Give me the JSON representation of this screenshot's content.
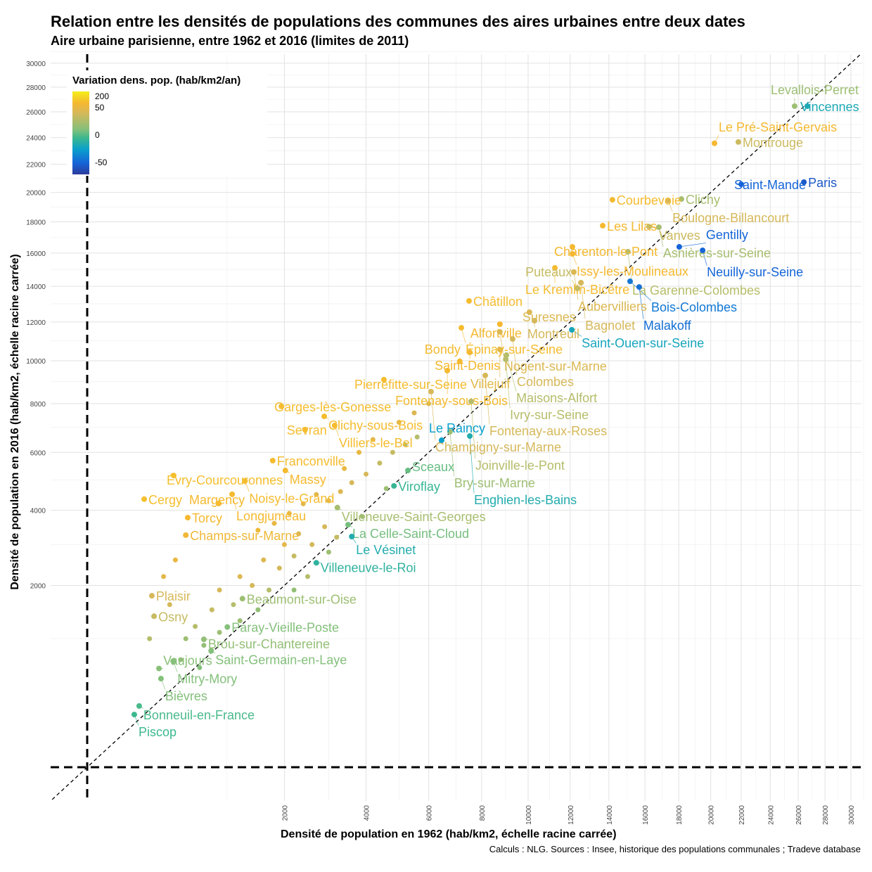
{
  "title": "Relation entre les densités de populations des communes des aires urbaines entre deux dates",
  "subtitle": "Aire urbaine parisienne, entre 1962 et 2016 (limites de 2011)",
  "caption": "Calculs : NLG. Sources : Insee, historique des populations communales ; Tradeve database",
  "chart_data": {
    "type": "scatter",
    "xlabel": "Densité de population en 1962 (hab/km2, échelle racine carrée)",
    "ylabel": "Densité de population en 2016 (hab/km2, échelle racine carrée)",
    "x_scale": "sqrt",
    "y_scale": "sqrt",
    "xlim": [
      0,
      31000
    ],
    "ylim": [
      0,
      31000
    ],
    "x_ticks": [
      2000,
      4000,
      6000,
      8000,
      10000,
      12000,
      14000,
      16000,
      18000,
      20000,
      22000,
      24000,
      26000,
      28000,
      30000
    ],
    "y_ticks": [
      2000,
      4000,
      6000,
      8000,
      10000,
      12000,
      14000,
      16000,
      18000,
      20000,
      22000,
      24000,
      26000,
      28000,
      30000
    ],
    "reference_lines": {
      "diagonal": "y = x",
      "vertical_x": 0,
      "horizontal_y": 0
    },
    "legend": {
      "title": "Variation dens. pop. (hab/km2/an)",
      "ticks": [
        {
          "label": "200",
          "value": 200
        },
        {
          "label": "50",
          "value": 50
        },
        {
          "label": "0",
          "value": 0
        },
        {
          "label": "-50",
          "value": -50
        }
      ],
      "color_scale": [
        [
          -80,
          "#2b3a9c"
        ],
        [
          -50,
          "#1565d8"
        ],
        [
          -20,
          "#0a9fcc"
        ],
        [
          0,
          "#3cb88f"
        ],
        [
          5,
          "#84c07b"
        ],
        [
          15,
          "#b6bd6a"
        ],
        [
          25,
          "#d6b85a"
        ],
        [
          50,
          "#f5b830"
        ],
        [
          200,
          "#f4ee1a"
        ]
      ]
    },
    "points": [
      {
        "name": "Vincennes",
        "x": 26670,
        "y": 26450,
        "var": -12
      },
      {
        "name": "Levallois-Perret",
        "x": 25740,
        "y": 26450,
        "var": 10
      },
      {
        "name": "Montrouge",
        "x": 21810,
        "y": 23660,
        "var": 22
      },
      {
        "name": "Le Pré-Saint-Gervais",
        "x": 20240,
        "y": 23560,
        "var": 50
      },
      {
        "name": "Paris",
        "x": 26420,
        "y": 20720,
        "var": -60
      },
      {
        "name": "Saint-Mandé",
        "x": 22000,
        "y": 20570,
        "var": -50
      },
      {
        "name": "Clichy",
        "x": 18160,
        "y": 19540,
        "var": 12
      },
      {
        "name": "Boulogne-Billancourt",
        "x": 17360,
        "y": 19440,
        "var": 25
      },
      {
        "name": "Courbevoie",
        "x": 14190,
        "y": 19490,
        "var": 55
      },
      {
        "name": "Les Lilas",
        "x": 13670,
        "y": 17750,
        "var": 50
      },
      {
        "name": "Vanves",
        "x": 16240,
        "y": 17690,
        "var": 22
      },
      {
        "name": "Asnières-sur-Seine",
        "x": 16810,
        "y": 17650,
        "var": 12
      },
      {
        "name": "Gentilly",
        "x": 18030,
        "y": 16390,
        "var": -50
      },
      {
        "name": "Neuilly-sur-Seine",
        "x": 19480,
        "y": 16170,
        "var": -50
      },
      {
        "name": "La Garenne-Colombes",
        "x": 15040,
        "y": 16080,
        "var": 15
      },
      {
        "name": "Charenton-le-Pont",
        "x": 12110,
        "y": 16390,
        "var": 50
      },
      {
        "name": "Issy-les-Moulineaux",
        "x": 12110,
        "y": 15950,
        "var": 50
      },
      {
        "name": "Le Kremlin-Bicêtre",
        "x": 11250,
        "y": 15090,
        "var": 60
      },
      {
        "name": "Aubervilliers",
        "x": 12180,
        "y": 14840,
        "var": 30
      },
      {
        "name": "Bois-Colombes",
        "x": 15160,
        "y": 14290,
        "var": -40
      },
      {
        "name": "Malakoff",
        "x": 15670,
        "y": 13960,
        "var": -45
      },
      {
        "name": "Bagnolet",
        "x": 12540,
        "y": 14210,
        "var": 25
      },
      {
        "name": "Puteaux",
        "x": 12360,
        "y": 13880,
        "var": 20
      },
      {
        "name": "Châtillon",
        "x": 7500,
        "y": 13160,
        "var": 60
      },
      {
        "name": "Suresnes",
        "x": 10060,
        "y": 12530,
        "var": 30
      },
      {
        "name": "Montreuil",
        "x": 10290,
        "y": 12070,
        "var": 25
      },
      {
        "name": "Épinay-sur-Seine",
        "x": 7200,
        "y": 11690,
        "var": 60
      },
      {
        "name": "Alfortville",
        "x": 8760,
        "y": 11880,
        "var": 50
      },
      {
        "name": "Saint-Ouen-sur-Seine",
        "x": 12080,
        "y": 11580,
        "var": -15
      },
      {
        "name": "Nogent-sur-Marne",
        "x": 8760,
        "y": 11470,
        "var": 30
      },
      {
        "name": "Colombes",
        "x": 9310,
        "y": 11100,
        "var": 25
      },
      {
        "name": "Saint-Denis",
        "x": 7530,
        "y": 10420,
        "var": 50
      },
      {
        "name": "Villejuif",
        "x": 8760,
        "y": 10560,
        "var": 35
      },
      {
        "name": "Maisons-Alfort",
        "x": 9040,
        "y": 10280,
        "var": 15
      },
      {
        "name": "Ivry-sur-Seine",
        "x": 9010,
        "y": 10070,
        "var": 15
      },
      {
        "name": "Bondy",
        "x": 7140,
        "y": 9970,
        "var": 55
      },
      {
        "name": "Fontenay-sous-Bois",
        "x": 6670,
        "y": 9520,
        "var": 55
      },
      {
        "name": "Fontenay-aux-Roses",
        "x": 8150,
        "y": 9290,
        "var": 25
      },
      {
        "name": "Pierrefitte-sur-Seine",
        "x": 4530,
        "y": 9090,
        "var": 60
      },
      {
        "name": "Champigny-sur-Marne",
        "x": 6080,
        "y": 8540,
        "var": 25
      },
      {
        "name": "Joinville-le-Pont",
        "x": 7580,
        "y": 8100,
        "var": 15
      },
      {
        "name": "Garges-lès-Gonesse",
        "x": 1940,
        "y": 7880,
        "var": 65
      },
      {
        "name": "Clichy-sous-Bois",
        "x": 2890,
        "y": 7450,
        "var": 65
      },
      {
        "name": "Villiers-le-Bel",
        "x": 3150,
        "y": 7070,
        "var": 60
      },
      {
        "name": "Sevran",
        "x": 2440,
        "y": 6900,
        "var": 65
      },
      {
        "name": "Bry-sur-Marne",
        "x": 6770,
        "y": 6810,
        "var": 10
      },
      {
        "name": "Enghien-les-Bains",
        "x": 7530,
        "y": 6640,
        "var": -10
      },
      {
        "name": "Le Raincy",
        "x": 6460,
        "y": 6470,
        "var": -20
      },
      {
        "name": "Franconville",
        "x": 1770,
        "y": 5690,
        "var": 60
      },
      {
        "name": "Massy",
        "x": 2020,
        "y": 5330,
        "var": 55
      },
      {
        "name": "Sceaux",
        "x": 5290,
        "y": 5330,
        "var": 3
      },
      {
        "name": "Évry-Courcouronnes",
        "x": 385,
        "y": 5150,
        "var": 70
      },
      {
        "name": "Noisy-le-Grand",
        "x": 1280,
        "y": 4960,
        "var": 60
      },
      {
        "name": "Viroflay",
        "x": 4840,
        "y": 4790,
        "var": -2
      },
      {
        "name": "Longjumeau",
        "x": 1080,
        "y": 4510,
        "var": 55
      },
      {
        "name": "Cergy",
        "x": 167,
        "y": 4350,
        "var": 70
      },
      {
        "name": "Margency",
        "x": 890,
        "y": 4210,
        "var": 55
      },
      {
        "name": "Villeneuve-Saint-Georges",
        "x": 3220,
        "y": 4080,
        "var": 12
      },
      {
        "name": "Torcy",
        "x": 520,
        "y": 3770,
        "var": 50
      },
      {
        "name": "La Celle-Saint-Cloud",
        "x": 3500,
        "y": 3560,
        "var": 4
      },
      {
        "name": "Champs-sur-Marne",
        "x": 500,
        "y": 3260,
        "var": 45
      },
      {
        "name": "Le Vésinet",
        "x": 3600,
        "y": 3220,
        "var": -10
      },
      {
        "name": "Villeneuve-le-Roi",
        "x": 2700,
        "y": 2530,
        "var": -5
      },
      {
        "name": "Plaisir",
        "x": 215,
        "y": 1780,
        "var": 25
      },
      {
        "name": "Beaumont-sur-Oise",
        "x": 1240,
        "y": 1720,
        "var": 10
      },
      {
        "name": "Osny",
        "x": 230,
        "y": 1380,
        "var": 20
      },
      {
        "name": "Paray-Vieille-Poste",
        "x": 1010,
        "y": 1190,
        "var": 5
      },
      {
        "name": "Brou-sur-Chantereine",
        "x": 700,
        "y": 990,
        "var": 8
      },
      {
        "name": "Saint-Germain-en-Laye",
        "x": 790,
        "y": 820,
        "var": 5
      },
      {
        "name": "Mitry-Mory",
        "x": 380,
        "y": 680,
        "var": 5
      },
      {
        "name": "Vaujours",
        "x": 265,
        "y": 590,
        "var": 6
      },
      {
        "name": "Bièvres",
        "x": 280,
        "y": 475,
        "var": 5
      },
      {
        "name": "Bonneuil-en-France",
        "x": 139,
        "y": 227,
        "var": 1
      },
      {
        "name": "Piscop",
        "x": 114,
        "y": 168,
        "var": 0
      }
    ],
    "other_points": [
      [
        1500,
        3400,
        45
      ],
      [
        1800,
        3600,
        40
      ],
      [
        2100,
        3900,
        40
      ],
      [
        2400,
        4200,
        35
      ],
      [
        2700,
        4500,
        35
      ],
      [
        3000,
        4300,
        30
      ],
      [
        3300,
        4600,
        30
      ],
      [
        3600,
        4900,
        25
      ],
      [
        2000,
        3000,
        35
      ],
      [
        2300,
        3300,
        30
      ],
      [
        2600,
        3000,
        25
      ],
      [
        2900,
        3500,
        25
      ],
      [
        3200,
        3200,
        20
      ],
      [
        1600,
        2600,
        30
      ],
      [
        1900,
        2400,
        25
      ],
      [
        2200,
        2700,
        20
      ],
      [
        2500,
        2200,
        15
      ],
      [
        1200,
        2200,
        30
      ],
      [
        1400,
        2000,
        25
      ],
      [
        1700,
        1900,
        15
      ],
      [
        900,
        1900,
        25
      ],
      [
        1100,
        1600,
        15
      ],
      [
        800,
        1500,
        20
      ],
      [
        600,
        1200,
        15
      ],
      [
        500,
        1000,
        10
      ],
      [
        700,
        900,
        8
      ],
      [
        900,
        1100,
        10
      ],
      [
        1200,
        1300,
        10
      ],
      [
        4000,
        5200,
        25
      ],
      [
        4400,
        5600,
        20
      ],
      [
        4800,
        6000,
        20
      ],
      [
        5200,
        6300,
        15
      ],
      [
        5600,
        6600,
        15
      ],
      [
        3800,
        6000,
        40
      ],
      [
        4200,
        6500,
        35
      ],
      [
        5000,
        7200,
        35
      ],
      [
        5500,
        7600,
        30
      ],
      [
        6000,
        8000,
        30
      ],
      [
        3400,
        5400,
        40
      ],
      [
        4600,
        4700,
        10
      ],
      [
        3900,
        3800,
        10
      ],
      [
        3000,
        2800,
        10
      ],
      [
        2200,
        1900,
        8
      ],
      [
        1500,
        1500,
        8
      ],
      [
        400,
        2600,
        40
      ],
      [
        300,
        2200,
        35
      ],
      [
        350,
        1600,
        25
      ],
      [
        200,
        1000,
        15
      ],
      [
        450,
        700,
        8
      ],
      [
        650,
        600,
        5
      ]
    ]
  }
}
